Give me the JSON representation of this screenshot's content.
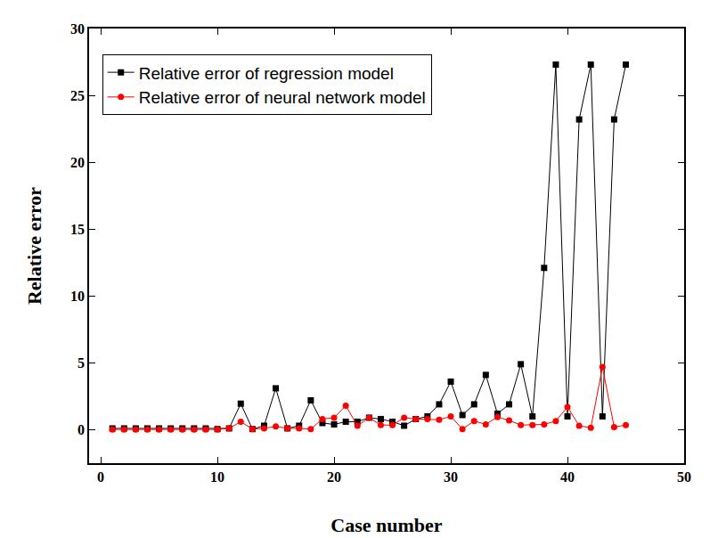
{
  "chart_data": {
    "type": "line",
    "x_label": "Case number",
    "y_label": "Relative error",
    "x": [
      1,
      2,
      3,
      4,
      5,
      6,
      7,
      8,
      9,
      10,
      11,
      12,
      13,
      14,
      15,
      16,
      17,
      18,
      19,
      20,
      21,
      22,
      23,
      24,
      25,
      26,
      27,
      28,
      29,
      30,
      31,
      32,
      33,
      34,
      35,
      36,
      37,
      38,
      39,
      40,
      41,
      42,
      43,
      44,
      45
    ],
    "series": [
      {
        "name": "Relative error of regression model",
        "color": "#000000",
        "marker": "square",
        "values": [
          0.1,
          0.1,
          0.1,
          0.1,
          0.1,
          0.1,
          0.1,
          0.1,
          0.1,
          0.05,
          0.1,
          1.95,
          0.05,
          0.3,
          3.1,
          0.1,
          0.3,
          2.2,
          0.5,
          0.4,
          0.6,
          0.6,
          0.9,
          0.8,
          0.6,
          0.3,
          0.8,
          1.0,
          1.9,
          3.6,
          1.1,
          1.9,
          4.1,
          1.2,
          1.9,
          4.9,
          1.0,
          12.1,
          27.3,
          1.0,
          23.2,
          27.3,
          1.0,
          23.2,
          27.3
        ]
      },
      {
        "name": "Relative error of neural network model",
        "color": "#ff0000",
        "marker": "circle",
        "values": [
          0.02,
          0.02,
          0.02,
          0.02,
          0.02,
          0.02,
          0.02,
          0.02,
          0.02,
          0.02,
          0.1,
          0.6,
          0.05,
          0.1,
          0.25,
          0.1,
          0.1,
          0.05,
          0.8,
          0.9,
          1.8,
          0.3,
          0.9,
          0.35,
          0.35,
          0.9,
          0.8,
          0.8,
          0.75,
          1.0,
          0.05,
          0.65,
          0.4,
          0.95,
          0.7,
          0.35,
          0.35,
          0.4,
          0.65,
          1.7,
          0.3,
          0.15,
          4.7,
          0.2,
          0.35
        ]
      }
    ],
    "xlim": [
      -1,
      50
    ],
    "xticks": [
      0,
      10,
      20,
      30,
      40,
      50
    ],
    "ylim": [
      -2.5,
      30
    ],
    "yticks": [
      0,
      5,
      10,
      15,
      20,
      25,
      30
    ],
    "grid": false,
    "legend": "upper left"
  }
}
